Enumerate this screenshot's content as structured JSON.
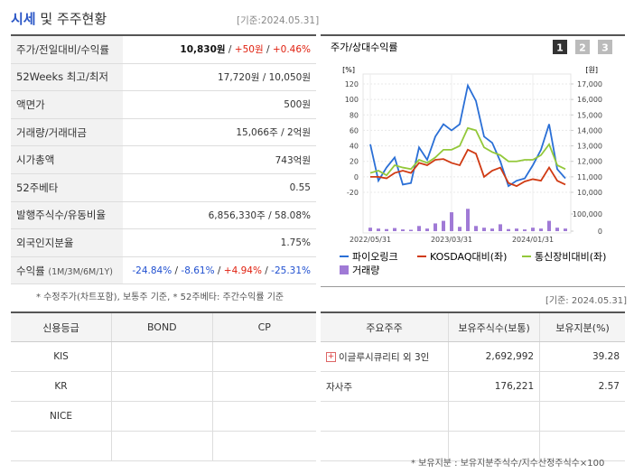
{
  "header": {
    "title": "시세",
    "title_rest": "및 주주현황",
    "basis": "[기준:2024.05.31]"
  },
  "summary": {
    "sep": " / ",
    "rows": [
      {
        "label": "주가/전일대비/수익률",
        "values": [
          "10,830원",
          "+50원",
          "+0.46%"
        ],
        "tones": [
          "bold",
          "up",
          "up"
        ]
      },
      {
        "label": "52Weeks 최고/최저",
        "values": [
          "17,720원",
          "10,050원"
        ]
      },
      {
        "label": "액면가",
        "values": [
          "500원"
        ]
      },
      {
        "label": "거래량/거래대금",
        "values": [
          "15,066주",
          "2억원"
        ]
      },
      {
        "label": "시가총액",
        "values": [
          "743억원"
        ]
      },
      {
        "label": "52주베타",
        "values": [
          "0.55"
        ]
      },
      {
        "label": "발행주식수/유동비율",
        "values": [
          "6,856,330주",
          "58.08%"
        ]
      },
      {
        "label": "외국인지분율",
        "values": [
          "1.75%"
        ]
      },
      {
        "label": "수익률",
        "sublabel": "(1M/3M/6M/1Y)",
        "values": [
          "-24.84%",
          "-8.61%",
          "+4.94%",
          "-25.31%"
        ],
        "tones": [
          "down",
          "down",
          "up",
          "down"
        ]
      }
    ],
    "note": "* 수정주가(차트포함), 보통주 기준, * 52주베타: 주간수익률 기준"
  },
  "chart": {
    "type": "line",
    "title": "주가/상대수익률",
    "tabs": [
      "1",
      "2",
      "3"
    ],
    "ylabel": "[%]",
    "y2label": "[원]",
    "categories": [
      "2022/05/31",
      null,
      null,
      null,
      null,
      null,
      null,
      null,
      null,
      null,
      "2023/03/31",
      null,
      null,
      null,
      null,
      null,
      null,
      null,
      null,
      null,
      "2024/01/31",
      null,
      null,
      null,
      null
    ],
    "ylim": [
      -20,
      120
    ],
    "yticks": [
      -20,
      0,
      20,
      40,
      60,
      80,
      100,
      120
    ],
    "y2lim": [
      10000,
      17000
    ],
    "y2ticks": [
      {
        "value": 10000,
        "label": "10,000"
      },
      {
        "value": 11000,
        "label": "11,000"
      },
      {
        "value": 12000,
        "label": "12,000"
      },
      {
        "value": 13000,
        "label": "13,000"
      },
      {
        "value": 14000,
        "label": "14,000"
      },
      {
        "value": 15000,
        "label": "15,000"
      },
      {
        "value": 16000,
        "label": "16,000"
      },
      {
        "value": 17000,
        "label": "17,000"
      }
    ],
    "vlim": [
      0,
      100000
    ],
    "vticks": [
      0,
      {
        "value": 100000,
        "label": "100,000"
      }
    ],
    "series": [
      {
        "name": "파이오링크",
        "color": "#2a6fd6",
        "values": [
          42,
          -5,
          12,
          25,
          -10,
          -8,
          38,
          22,
          52,
          68,
          60,
          68,
          118,
          98,
          52,
          44,
          20,
          -12,
          -5,
          -2,
          15,
          35,
          68,
          10,
          -2
        ]
      },
      {
        "name": "KOSDAQ대비(좌)",
        "color": "#d03a13",
        "values": [
          0,
          0,
          -2,
          5,
          8,
          5,
          18,
          15,
          22,
          23,
          18,
          15,
          35,
          30,
          0,
          8,
          12,
          -8,
          -12,
          -6,
          -3,
          -5,
          12,
          -5,
          -10
        ]
      },
      {
        "name": "통신장비대비(좌)",
        "color": "#93c83a",
        "values": [
          5,
          8,
          2,
          15,
          12,
          10,
          22,
          18,
          25,
          35,
          35,
          40,
          63,
          60,
          38,
          32,
          28,
          20,
          20,
          22,
          22,
          28,
          42,
          15,
          10
        ]
      },
      {
        "name": "거래량",
        "color": "#a07ad6",
        "axis": "volume",
        "values": [
          20000,
          15000,
          12000,
          18000,
          10000,
          8000,
          30000,
          15000,
          45000,
          60000,
          110000,
          25000,
          130000,
          30000,
          20000,
          15000,
          40000,
          12000,
          15000,
          10000,
          20000,
          15000,
          60000,
          20000,
          15000
        ]
      }
    ]
  },
  "basis2": "[기준: 2024.05.31]",
  "credit": {
    "columns": [
      "신용등급",
      "BOND",
      "CP"
    ],
    "rows": [
      [
        "KIS"
      ],
      [
        "KR"
      ],
      [
        "NICE"
      ]
    ]
  },
  "holders": {
    "columns": [
      "주요주주",
      "보유주식수(보통)",
      "보유지분(%)"
    ],
    "rows": [
      [
        "이글루시큐리티 외 3인",
        "2,692,992",
        "39.28"
      ],
      [
        "자사주",
        "176,221",
        "2.57"
      ]
    ],
    "note": "* 보유지분 : 보유지분주식수/지수산정주식수×100"
  }
}
